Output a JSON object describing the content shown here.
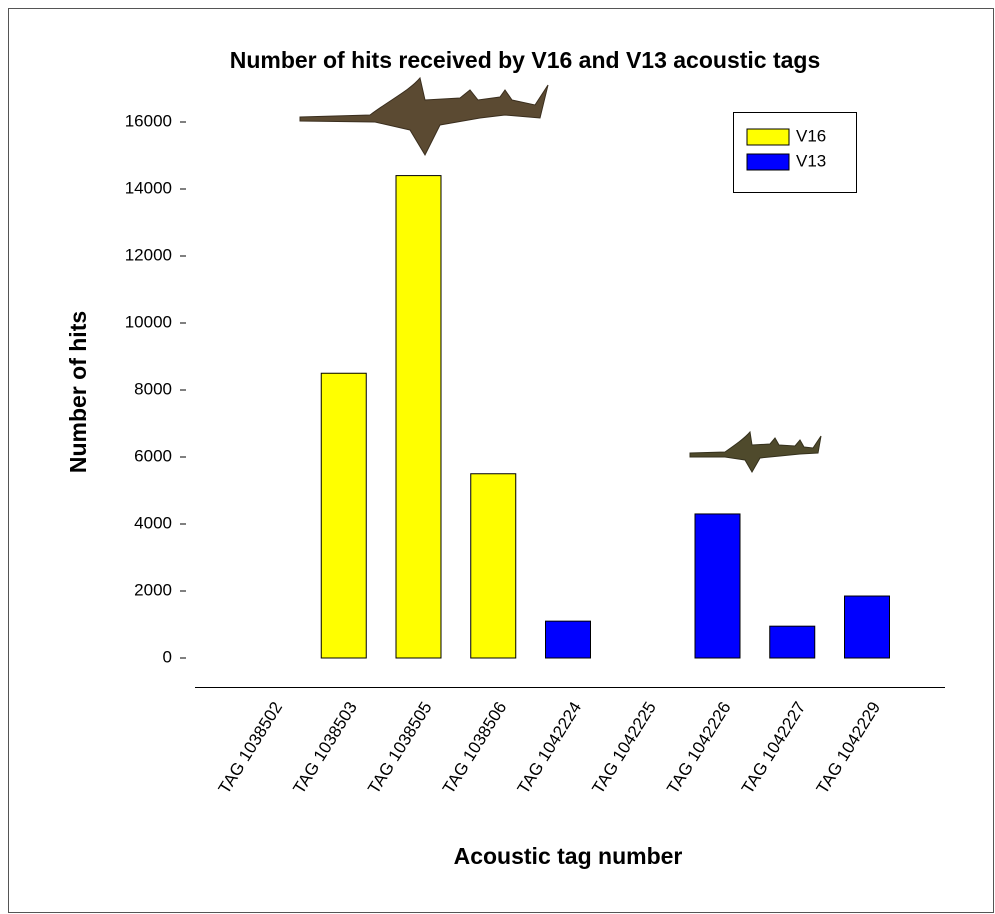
{
  "chart_data": {
    "type": "bar",
    "title": "Number of hits received by V16 and V13 acoustic tags",
    "x_label": "Acoustic tag number",
    "y_label": "Number of hits",
    "categories": [
      "TAG 1038502",
      "TAG 1038503",
      "TAG 1038505",
      "TAG 1038506",
      "TAG 1042224",
      "TAG 1042225",
      "TAG 1042226",
      "TAG 1042227",
      "TAG 1042229"
    ],
    "series": [
      {
        "name": "V16",
        "color": "#ffff00",
        "values": [
          null,
          8500,
          14400,
          5500,
          null,
          null,
          null,
          null,
          null
        ]
      },
      {
        "name": "V13",
        "color": "#0000ff",
        "values": [
          null,
          null,
          null,
          null,
          1100,
          null,
          4300,
          950,
          1850
        ]
      }
    ],
    "ylim": [
      0,
      16000
    ],
    "yticks": [
      0,
      2000,
      4000,
      6000,
      8000,
      10000,
      12000,
      14000,
      16000
    ],
    "legend": "top-right"
  }
}
